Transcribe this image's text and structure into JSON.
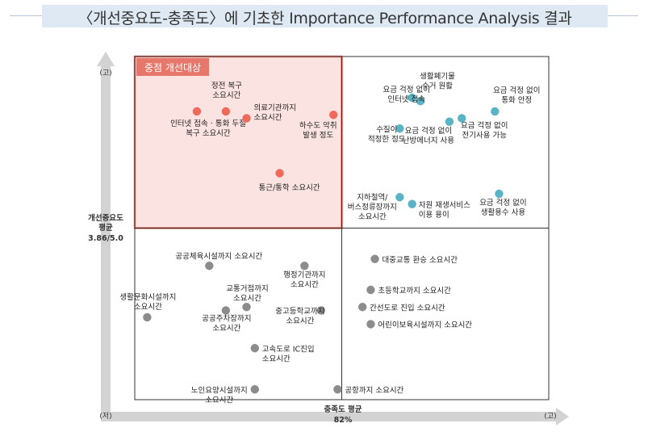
{
  "title": "〈개선중요도-충족도〉에 기초한 Importance Performance Analysis 결과",
  "colors": {
    "title_bg": "#dfe9f3",
    "priority_fill": "#fbe3e1",
    "priority_border": "#e8776b",
    "red_point": "#ef6a5a",
    "teal_point": "#5bb3c6",
    "gray_point": "#8c8c8c",
    "axis_arrow": "#d3d3d3"
  },
  "chart_data": {
    "type": "scatter",
    "title": "〈개선중요도-충족도〉에 기초한 Importance Performance Analysis 결과",
    "xlabel": "충족도 평균",
    "x_mean_label": "82%",
    "ylabel": "개선중요도 평균",
    "y_mean_label": "3.86/5.0",
    "x_axis_low": "(저)",
    "x_axis_high": "(고)",
    "y_axis_high": "(고)",
    "priority_quadrant_label": "중점 개선대상",
    "note": "values are relative positions on an unscaled map (0–100); the mean lines sit at 50",
    "xlim": [
      0,
      100
    ],
    "ylim": [
      0,
      100
    ],
    "points": [
      {
        "label": "정전 복구 소요시간",
        "x": 22,
        "y": 84,
        "group": "red"
      },
      {
        "label": "인터넷 접속 · 통화 두절 복구 소요시간",
        "x": 15,
        "y": 84,
        "group": "red"
      },
      {
        "label": "의료기관까지 소요시간",
        "x": 27,
        "y": 82,
        "group": "red"
      },
      {
        "label": "하수도 악취 발생 정도",
        "x": 48,
        "y": 83,
        "group": "red"
      },
      {
        "label": "통근/통학 소요시간",
        "x": 35,
        "y": 66,
        "group": "red"
      },
      {
        "label": "생활폐기물 수거 원활",
        "x": 69,
        "y": 87,
        "group": "teal"
      },
      {
        "label": "요금 걱정 없이 인터넷 접속",
        "x": 67,
        "y": 88,
        "group": "teal"
      },
      {
        "label": "요금 걱정 없이 통화 안정",
        "x": 87,
        "y": 84,
        "group": "teal"
      },
      {
        "label": "요금 걱정 없이 난방에너지 사용",
        "x": 76,
        "y": 81,
        "group": "teal"
      },
      {
        "label": "요금 걱정 없이 전기사용 가능",
        "x": 79,
        "y": 82,
        "group": "teal"
      },
      {
        "label": "수질이 적정한 정도",
        "x": 64,
        "y": 79,
        "group": "teal"
      },
      {
        "label": "지하철역/ 버스정류장까지 소요시간",
        "x": 64,
        "y": 59,
        "group": "teal"
      },
      {
        "label": "자원 재생서비스 이용 용이",
        "x": 67,
        "y": 57,
        "group": "teal"
      },
      {
        "label": "요금 걱정 없이 생활용수 사용",
        "x": 88,
        "y": 60,
        "group": "teal"
      },
      {
        "label": "공공체육시설까지 소요시간",
        "x": 18,
        "y": 39,
        "group": "gray"
      },
      {
        "label": "행정기관까지 소요시간",
        "x": 41,
        "y": 39,
        "group": "gray"
      },
      {
        "label": "교통거점까지 소요시간",
        "x": 27,
        "y": 27,
        "group": "gray"
      },
      {
        "label": "생활문화시설까지 소요시간",
        "x": 3,
        "y": 24,
        "group": "gray"
      },
      {
        "label": "공공주차장까지 소요시간",
        "x": 22,
        "y": 26,
        "group": "gray"
      },
      {
        "label": "중고등학교까지 소요시간",
        "x": 45,
        "y": 26,
        "group": "gray"
      },
      {
        "label": "고속도로 IC진입 소요시간",
        "x": 29,
        "y": 15,
        "group": "gray"
      },
      {
        "label": "노인요양시설까지 소요시간",
        "x": 29,
        "y": 3,
        "group": "gray"
      },
      {
        "label": "대중교통 환승 소요시간",
        "x": 58,
        "y": 41,
        "group": "gray"
      },
      {
        "label": "초등학교까지 소요시간",
        "x": 57,
        "y": 32,
        "group": "gray"
      },
      {
        "label": "간선도로 진입 소요시간",
        "x": 55,
        "y": 27,
        "group": "gray"
      },
      {
        "label": "어린이보육시설까지 소요시간",
        "x": 57,
        "y": 22,
        "group": "gray"
      },
      {
        "label": "공항까지 소요시간",
        "x": 49,
        "y": 3,
        "group": "gray"
      }
    ]
  }
}
